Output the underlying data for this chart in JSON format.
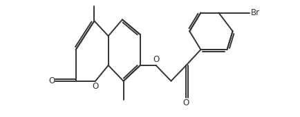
{
  "bg_color": "#ffffff",
  "line_color": "#333333",
  "line_width": 1.4,
  "font_size": 8.5,
  "figsize": [
    4.35,
    1.7
  ],
  "dpi": 100,
  "xlim": [
    -0.5,
    11.5
  ],
  "ylim": [
    0.0,
    5.5
  ]
}
